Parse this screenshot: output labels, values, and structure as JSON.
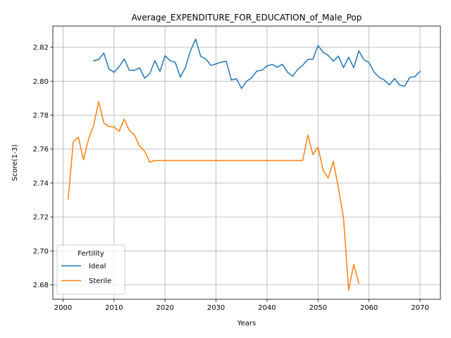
{
  "chart_data": {
    "type": "line",
    "title": "Average_EXPENDITURE_FOR_EDUCATION_of_Male_Pop",
    "xlabel": "Years",
    "ylabel": "Score(1-3)",
    "xlim": [
      1998,
      2074
    ],
    "ylim": [
      2.6715,
      2.8325
    ],
    "xticks": [
      2000,
      2010,
      2020,
      2030,
      2040,
      2050,
      2060,
      2070
    ],
    "yticks": [
      2.68,
      2.7,
      2.72,
      2.74,
      2.76,
      2.78,
      2.8,
      2.82
    ],
    "ytick_labels": [
      "2.68",
      "2.70",
      "2.72",
      "2.74",
      "2.76",
      "2.78",
      "2.80",
      "2.82"
    ],
    "grid": true,
    "legend": {
      "title": "Fertility",
      "location": "lower-left"
    },
    "series": [
      {
        "name": "Ideal",
        "color": "#1f77b4",
        "x": [
          2006,
          2007,
          2008,
          2009,
          2010,
          2011,
          2012,
          2013,
          2014,
          2015,
          2016,
          2017,
          2018,
          2019,
          2020,
          2021,
          2022,
          2023,
          2024,
          2025,
          2026,
          2027,
          2028,
          2029,
          2030,
          2031,
          2032,
          2033,
          2034,
          2035,
          2036,
          2037,
          2038,
          2039,
          2040,
          2041,
          2042,
          2043,
          2044,
          2045,
          2046,
          2047,
          2048,
          2049,
          2050,
          2051,
          2052,
          2053,
          2054,
          2055,
          2056,
          2057,
          2058,
          2059,
          2060,
          2061,
          2062,
          2063,
          2064,
          2065,
          2066,
          2067,
          2068,
          2069,
          2070
        ],
        "y": [
          2.812,
          2.8128,
          2.8166,
          2.8072,
          2.8052,
          2.8086,
          2.8131,
          2.8064,
          2.8064,
          2.8079,
          2.8018,
          2.8045,
          2.8121,
          2.8058,
          2.815,
          2.8121,
          2.8112,
          2.8024,
          2.8082,
          2.818,
          2.8248,
          2.8146,
          2.8131,
          2.8093,
          2.8102,
          2.8112,
          2.8118,
          2.8007,
          2.8015,
          2.7957,
          2.8,
          2.8021,
          2.806,
          2.8065,
          2.809,
          2.8099,
          2.8082,
          2.81,
          2.8054,
          2.8029,
          2.8069,
          2.8094,
          2.8128,
          2.813,
          2.821,
          2.8171,
          2.8152,
          2.8118,
          2.8148,
          2.808,
          2.8141,
          2.808,
          2.8179,
          2.8127,
          2.811,
          2.8053,
          2.8022,
          2.8007,
          2.7978,
          2.8016,
          2.7977,
          2.7971,
          2.8023,
          2.8027,
          2.8058
        ]
      },
      {
        "name": "Sterile",
        "color": "#ff7f0e",
        "x": [
          2001,
          2002,
          2003,
          2004,
          2005,
          2006,
          2007,
          2008,
          2009,
          2010,
          2011,
          2012,
          2013,
          2014,
          2015,
          2016,
          2017,
          2018,
          2019,
          2020,
          2021,
          2022,
          2023,
          2024,
          2025,
          2026,
          2027,
          2028,
          2029,
          2030,
          2031,
          2032,
          2033,
          2034,
          2035,
          2036,
          2037,
          2038,
          2039,
          2040,
          2041,
          2042,
          2043,
          2044,
          2045,
          2046,
          2047,
          2048,
          2049,
          2050,
          2051,
          2052,
          2053,
          2054,
          2055,
          2056,
          2057,
          2058
        ],
        "y": [
          2.7305,
          2.7642,
          2.767,
          2.7537,
          2.7658,
          2.774,
          2.788,
          2.7754,
          2.7733,
          2.7731,
          2.7705,
          2.7777,
          2.771,
          2.7683,
          2.7618,
          2.7587,
          2.7523,
          2.7533,
          2.7533,
          2.7533,
          2.7533,
          2.7533,
          2.7533,
          2.7533,
          2.7533,
          2.7533,
          2.7533,
          2.7533,
          2.7533,
          2.7533,
          2.7533,
          2.7533,
          2.7533,
          2.7533,
          2.7533,
          2.7533,
          2.7533,
          2.7533,
          2.7533,
          2.7533,
          2.7533,
          2.7533,
          2.7533,
          2.7533,
          2.7533,
          2.7533,
          2.7533,
          2.7683,
          2.7568,
          2.7612,
          2.7475,
          2.743,
          2.7528,
          2.737,
          2.7192,
          2.677,
          2.692,
          2.681
        ]
      }
    ]
  }
}
